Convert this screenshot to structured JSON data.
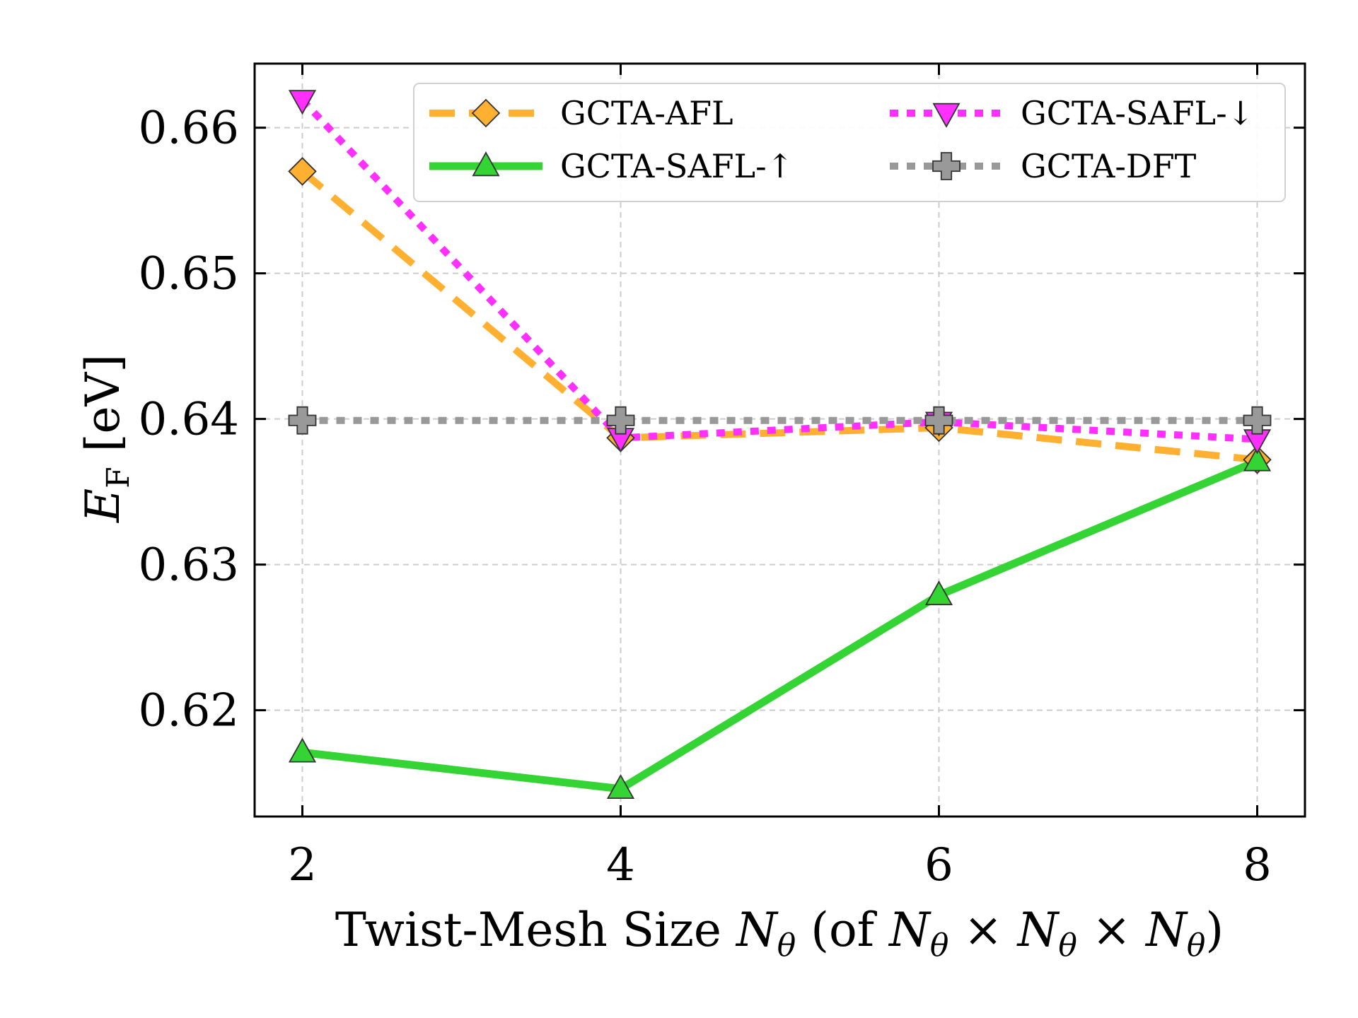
{
  "chart_data": {
    "type": "line",
    "title": "",
    "xlabel": "Twist-Mesh Size N_θ (of N_θ × N_θ × N_θ)",
    "ylabel": "E_F [eV]",
    "xlabel_parts": {
      "prefix": "Twist-Mesh Size ",
      "var": "N",
      "sub": "θ",
      "open": " (of ",
      "times": " × ",
      "close": ")"
    },
    "ylabel_parts": {
      "var": "E",
      "sub": "F",
      "unit": " [eV]"
    },
    "x": [
      2,
      4,
      6,
      8
    ],
    "xticks": [
      "2",
      "4",
      "6",
      "8"
    ],
    "yticks": [
      "0.62",
      "0.63",
      "0.64",
      "0.65",
      "0.66"
    ],
    "ytick_values": [
      0.62,
      0.63,
      0.64,
      0.65,
      0.66
    ],
    "xlim": [
      1.7,
      8.3
    ],
    "ylim": [
      0.6127,
      0.6644
    ],
    "grid": true,
    "legend_position": "top-right",
    "series": [
      {
        "name": "GCTA-AFL",
        "color": "#ffb030",
        "line_style": "dashed",
        "marker": "diamond",
        "values": [
          0.657,
          0.6387,
          0.6394,
          0.6372
        ]
      },
      {
        "name": "GCTA-SAFL-↑",
        "color": "#33d433",
        "line_style": "solid",
        "marker": "triangle-up",
        "values": [
          0.6171,
          0.6146,
          0.6279,
          0.6371
        ]
      },
      {
        "name": "GCTA-SAFL-↓",
        "color": "#ff30ff",
        "line_style": "dotted",
        "marker": "triangle-down",
        "values": [
          0.6619,
          0.6387,
          0.6398,
          0.6386
        ]
      },
      {
        "name": "GCTA-DFT",
        "color": "#999999",
        "line_style": "dotted",
        "marker": "plus",
        "values": [
          0.6399,
          0.6399,
          0.6399,
          0.6399
        ]
      }
    ]
  }
}
